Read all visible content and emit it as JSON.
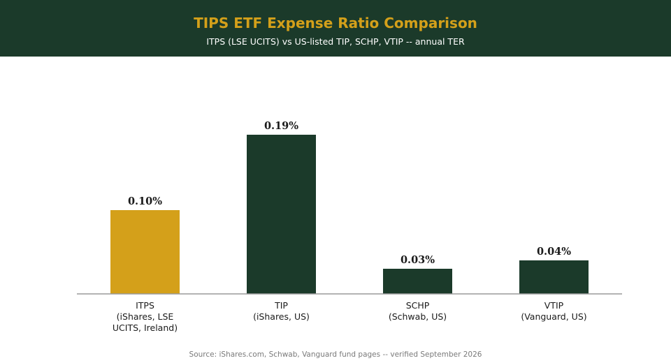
{
  "header": {
    "title": "TIPS ETF Expense Ratio Comparison",
    "subtitle": "ITPS (LSE UCITS) vs US-listed TIP, SCHP, VTIP -- annual TER"
  },
  "footer": {
    "source": "Source: iShares.com, Schwab, Vanguard fund pages -- verified September 2026"
  },
  "colors": {
    "header_bg": "#1b3a2a",
    "title": "#d4a01a",
    "highlight_bar": "#d4a01a",
    "bar": "#1b3a2a",
    "baseline": "#9a9a9a"
  },
  "chart_data": {
    "type": "bar",
    "title": "TIPS ETF Expense Ratio Comparison",
    "subtitle": "ITPS (LSE UCITS) vs US-listed TIP, SCHP, VTIP -- annual TER",
    "categories": [
      [
        "ITPS",
        "(iShares, LSE",
        "UCITS, Ireland)"
      ],
      [
        "TIP",
        "(iShares, US)"
      ],
      [
        "SCHP",
        "(Schwab, US)"
      ],
      [
        "VTIP",
        "(Vanguard, US)"
      ]
    ],
    "values": [
      0.1,
      0.19,
      0.03,
      0.04
    ],
    "value_labels": [
      "0.10%",
      "0.19%",
      "0.03%",
      "0.04%"
    ],
    "highlight": [
      true,
      false,
      false,
      false
    ],
    "unit": "%",
    "ylim": [
      0,
      0.21
    ],
    "xlabel": "",
    "ylabel": "",
    "grid": false,
    "legend": "none"
  }
}
